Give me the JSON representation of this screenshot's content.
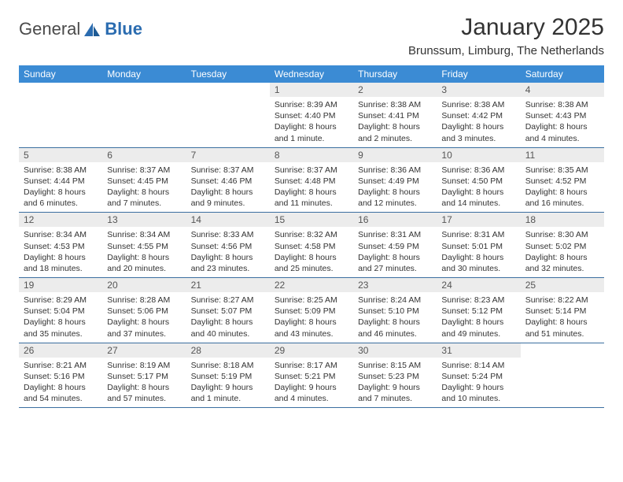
{
  "logo": {
    "part1": "General",
    "part2": "Blue"
  },
  "title": "January 2025",
  "subtitle": "Brunssum, Limburg, The Netherlands",
  "style": {
    "header_bg": "#3b8bd4",
    "header_text": "#ffffff",
    "daynum_bg": "#ececec",
    "row_border": "#3b6fa0",
    "page_bg": "#ffffff",
    "title_fontsize": 30,
    "subtitle_fontsize": 15,
    "th_fontsize": 12,
    "cell_fontsize": 10.5
  },
  "weekdays": [
    "Sunday",
    "Monday",
    "Tuesday",
    "Wednesday",
    "Thursday",
    "Friday",
    "Saturday"
  ],
  "weeks": [
    [
      null,
      null,
      null,
      {
        "n": "1",
        "sr": "8:39 AM",
        "ss": "4:40 PM",
        "dl": "8 hours and 1 minute."
      },
      {
        "n": "2",
        "sr": "8:38 AM",
        "ss": "4:41 PM",
        "dl": "8 hours and 2 minutes."
      },
      {
        "n": "3",
        "sr": "8:38 AM",
        "ss": "4:42 PM",
        "dl": "8 hours and 3 minutes."
      },
      {
        "n": "4",
        "sr": "8:38 AM",
        "ss": "4:43 PM",
        "dl": "8 hours and 4 minutes."
      }
    ],
    [
      {
        "n": "5",
        "sr": "8:38 AM",
        "ss": "4:44 PM",
        "dl": "8 hours and 6 minutes."
      },
      {
        "n": "6",
        "sr": "8:37 AM",
        "ss": "4:45 PM",
        "dl": "8 hours and 7 minutes."
      },
      {
        "n": "7",
        "sr": "8:37 AM",
        "ss": "4:46 PM",
        "dl": "8 hours and 9 minutes."
      },
      {
        "n": "8",
        "sr": "8:37 AM",
        "ss": "4:48 PM",
        "dl": "8 hours and 11 minutes."
      },
      {
        "n": "9",
        "sr": "8:36 AM",
        "ss": "4:49 PM",
        "dl": "8 hours and 12 minutes."
      },
      {
        "n": "10",
        "sr": "8:36 AM",
        "ss": "4:50 PM",
        "dl": "8 hours and 14 minutes."
      },
      {
        "n": "11",
        "sr": "8:35 AM",
        "ss": "4:52 PM",
        "dl": "8 hours and 16 minutes."
      }
    ],
    [
      {
        "n": "12",
        "sr": "8:34 AM",
        "ss": "4:53 PM",
        "dl": "8 hours and 18 minutes."
      },
      {
        "n": "13",
        "sr": "8:34 AM",
        "ss": "4:55 PM",
        "dl": "8 hours and 20 minutes."
      },
      {
        "n": "14",
        "sr": "8:33 AM",
        "ss": "4:56 PM",
        "dl": "8 hours and 23 minutes."
      },
      {
        "n": "15",
        "sr": "8:32 AM",
        "ss": "4:58 PM",
        "dl": "8 hours and 25 minutes."
      },
      {
        "n": "16",
        "sr": "8:31 AM",
        "ss": "4:59 PM",
        "dl": "8 hours and 27 minutes."
      },
      {
        "n": "17",
        "sr": "8:31 AM",
        "ss": "5:01 PM",
        "dl": "8 hours and 30 minutes."
      },
      {
        "n": "18",
        "sr": "8:30 AM",
        "ss": "5:02 PM",
        "dl": "8 hours and 32 minutes."
      }
    ],
    [
      {
        "n": "19",
        "sr": "8:29 AM",
        "ss": "5:04 PM",
        "dl": "8 hours and 35 minutes."
      },
      {
        "n": "20",
        "sr": "8:28 AM",
        "ss": "5:06 PM",
        "dl": "8 hours and 37 minutes."
      },
      {
        "n": "21",
        "sr": "8:27 AM",
        "ss": "5:07 PM",
        "dl": "8 hours and 40 minutes."
      },
      {
        "n": "22",
        "sr": "8:25 AM",
        "ss": "5:09 PM",
        "dl": "8 hours and 43 minutes."
      },
      {
        "n": "23",
        "sr": "8:24 AM",
        "ss": "5:10 PM",
        "dl": "8 hours and 46 minutes."
      },
      {
        "n": "24",
        "sr": "8:23 AM",
        "ss": "5:12 PM",
        "dl": "8 hours and 49 minutes."
      },
      {
        "n": "25",
        "sr": "8:22 AM",
        "ss": "5:14 PM",
        "dl": "8 hours and 51 minutes."
      }
    ],
    [
      {
        "n": "26",
        "sr": "8:21 AM",
        "ss": "5:16 PM",
        "dl": "8 hours and 54 minutes."
      },
      {
        "n": "27",
        "sr": "8:19 AM",
        "ss": "5:17 PM",
        "dl": "8 hours and 57 minutes."
      },
      {
        "n": "28",
        "sr": "8:18 AM",
        "ss": "5:19 PM",
        "dl": "9 hours and 1 minute."
      },
      {
        "n": "29",
        "sr": "8:17 AM",
        "ss": "5:21 PM",
        "dl": "9 hours and 4 minutes."
      },
      {
        "n": "30",
        "sr": "8:15 AM",
        "ss": "5:23 PM",
        "dl": "9 hours and 7 minutes."
      },
      {
        "n": "31",
        "sr": "8:14 AM",
        "ss": "5:24 PM",
        "dl": "9 hours and 10 minutes."
      },
      null
    ]
  ],
  "labels": {
    "sunrise": "Sunrise:",
    "sunset": "Sunset:",
    "daylight": "Daylight:"
  }
}
